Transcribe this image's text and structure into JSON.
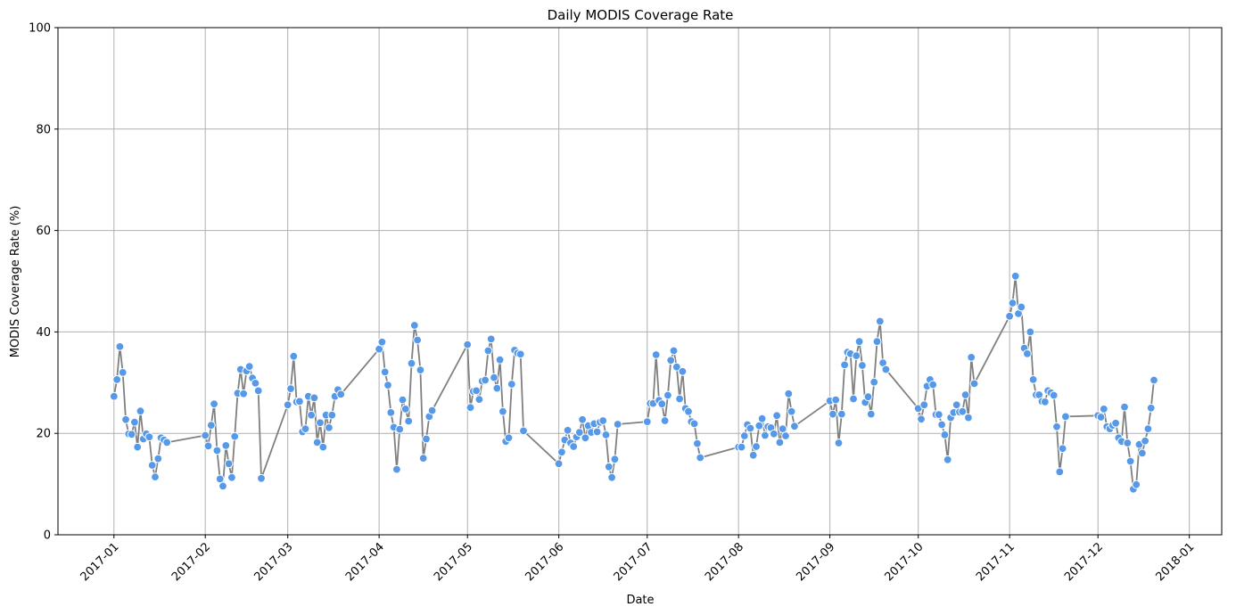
{
  "chart_data": {
    "type": "line",
    "title": "Daily MODIS Coverage Rate",
    "xlabel": "Date",
    "ylabel": "MODIS Coverage Rate (%)",
    "ylim": [
      0,
      100
    ],
    "yticks": [
      0,
      20,
      40,
      60,
      80,
      100
    ],
    "xticks": [
      "2017-01",
      "2017-02",
      "2017-03",
      "2017-04",
      "2017-05",
      "2017-06",
      "2017-07",
      "2017-08",
      "2017-09",
      "2017-10",
      "2017-11",
      "2017-12",
      "2018-01"
    ],
    "grid": true,
    "line_color": "#808080",
    "marker_color": "#5599e8",
    "series": [
      {
        "x": [
          "2017-01-01",
          "2017-01-02",
          "2017-01-03",
          "2017-01-04",
          "2017-01-05",
          "2017-01-06",
          "2017-01-07",
          "2017-01-08",
          "2017-01-09",
          "2017-01-10",
          "2017-01-11",
          "2017-01-12",
          "2017-01-13",
          "2017-01-14",
          "2017-01-15",
          "2017-01-16",
          "2017-01-17",
          "2017-01-18",
          "2017-01-19",
          "2017-02-01",
          "2017-02-02",
          "2017-02-03",
          "2017-02-04",
          "2017-02-05",
          "2017-02-06",
          "2017-02-07",
          "2017-02-08",
          "2017-02-09",
          "2017-02-10",
          "2017-02-11",
          "2017-02-12",
          "2017-02-13",
          "2017-02-14",
          "2017-02-15",
          "2017-02-16",
          "2017-02-17",
          "2017-02-18",
          "2017-02-19",
          "2017-02-20",
          "2017-03-01",
          "2017-03-02",
          "2017-03-03",
          "2017-03-04",
          "2017-03-05",
          "2017-03-06",
          "2017-03-07",
          "2017-03-08",
          "2017-03-09",
          "2017-03-10",
          "2017-03-11",
          "2017-03-12",
          "2017-03-13",
          "2017-03-14",
          "2017-03-15",
          "2017-03-16",
          "2017-03-17",
          "2017-03-18",
          "2017-03-19",
          "2017-04-01",
          "2017-04-02",
          "2017-04-03",
          "2017-04-04",
          "2017-04-05",
          "2017-04-06",
          "2017-04-07",
          "2017-04-08",
          "2017-04-09",
          "2017-04-10",
          "2017-04-11",
          "2017-04-12",
          "2017-04-13",
          "2017-04-14",
          "2017-04-15",
          "2017-04-16",
          "2017-04-17",
          "2017-04-18",
          "2017-04-19",
          "2017-05-01",
          "2017-05-02",
          "2017-05-03",
          "2017-05-04",
          "2017-05-05",
          "2017-05-06",
          "2017-05-07",
          "2017-05-08",
          "2017-05-09",
          "2017-05-10",
          "2017-05-11",
          "2017-05-12",
          "2017-05-13",
          "2017-05-14",
          "2017-05-15",
          "2017-05-16",
          "2017-05-17",
          "2017-05-18",
          "2017-05-19",
          "2017-05-20",
          "2017-06-01",
          "2017-06-02",
          "2017-06-03",
          "2017-06-04",
          "2017-06-05",
          "2017-06-06",
          "2017-06-07",
          "2017-06-08",
          "2017-06-09",
          "2017-06-10",
          "2017-06-11",
          "2017-06-12",
          "2017-06-13",
          "2017-06-14",
          "2017-06-15",
          "2017-06-16",
          "2017-06-17",
          "2017-06-18",
          "2017-06-19",
          "2017-06-20",
          "2017-06-21",
          "2017-07-01",
          "2017-07-02",
          "2017-07-03",
          "2017-07-04",
          "2017-07-05",
          "2017-07-06",
          "2017-07-07",
          "2017-07-08",
          "2017-07-09",
          "2017-07-10",
          "2017-07-11",
          "2017-07-12",
          "2017-07-13",
          "2017-07-14",
          "2017-07-15",
          "2017-07-16",
          "2017-07-17",
          "2017-07-18",
          "2017-07-19",
          "2017-08-01",
          "2017-08-02",
          "2017-08-03",
          "2017-08-04",
          "2017-08-05",
          "2017-08-06",
          "2017-08-07",
          "2017-08-08",
          "2017-08-09",
          "2017-08-10",
          "2017-08-11",
          "2017-08-12",
          "2017-08-13",
          "2017-08-14",
          "2017-08-15",
          "2017-08-16",
          "2017-08-17",
          "2017-08-18",
          "2017-08-19",
          "2017-08-20",
          "2017-09-01",
          "2017-09-02",
          "2017-09-03",
          "2017-09-04",
          "2017-09-05",
          "2017-09-06",
          "2017-09-07",
          "2017-09-08",
          "2017-09-09",
          "2017-09-10",
          "2017-09-11",
          "2017-09-12",
          "2017-09-13",
          "2017-09-14",
          "2017-09-15",
          "2017-09-16",
          "2017-09-17",
          "2017-09-18",
          "2017-09-19",
          "2017-09-20",
          "2017-10-01",
          "2017-10-02",
          "2017-10-03",
          "2017-10-04",
          "2017-10-05",
          "2017-10-06",
          "2017-10-07",
          "2017-10-08",
          "2017-10-09",
          "2017-10-10",
          "2017-10-11",
          "2017-10-12",
          "2017-10-13",
          "2017-10-14",
          "2017-10-15",
          "2017-10-16",
          "2017-10-17",
          "2017-10-18",
          "2017-10-19",
          "2017-10-20",
          "2017-11-01",
          "2017-11-02",
          "2017-11-03",
          "2017-11-04",
          "2017-11-05",
          "2017-11-06",
          "2017-11-07",
          "2017-11-08",
          "2017-11-09",
          "2017-11-10",
          "2017-11-11",
          "2017-11-12",
          "2017-11-13",
          "2017-11-14",
          "2017-11-15",
          "2017-11-16",
          "2017-11-17",
          "2017-11-18",
          "2017-11-19",
          "2017-11-20",
          "2017-12-01",
          "2017-12-02",
          "2017-12-03",
          "2017-12-04",
          "2017-12-05",
          "2017-12-06",
          "2017-12-07",
          "2017-12-08",
          "2017-12-09",
          "2017-12-10",
          "2017-12-11",
          "2017-12-12",
          "2017-12-13",
          "2017-12-14",
          "2017-12-15",
          "2017-12-16",
          "2017-12-17",
          "2017-12-18",
          "2017-12-19",
          "2017-12-20"
        ],
        "values": [
          27.3,
          30.6,
          37.1,
          32.0,
          22.7,
          19.9,
          19.8,
          22.2,
          17.3,
          24.4,
          18.9,
          19.9,
          19.3,
          13.7,
          11.4,
          15.0,
          19.1,
          18.7,
          18.2,
          19.6,
          17.5,
          21.6,
          25.8,
          16.6,
          11.0,
          9.6,
          17.6,
          14.0,
          11.3,
          19.4,
          27.9,
          32.6,
          27.8,
          32.3,
          33.2,
          30.9,
          29.9,
          28.4,
          11.1,
          25.6,
          28.8,
          35.2,
          26.2,
          26.3,
          20.3,
          20.9,
          27.3,
          23.6,
          27.0,
          18.2,
          22.1,
          17.3,
          23.6,
          21.1,
          23.6,
          27.3,
          28.6,
          27.7,
          36.6,
          38.0,
          32.1,
          29.5,
          24.1,
          21.2,
          12.9,
          20.8,
          26.6,
          24.8,
          22.4,
          33.8,
          41.3,
          38.4,
          32.5,
          15.1,
          18.9,
          23.3,
          24.5,
          37.5,
          25.1,
          28.3,
          28.4,
          26.7,
          30.3,
          30.5,
          36.3,
          38.6,
          31.0,
          28.9,
          34.5,
          24.3,
          18.4,
          19.1,
          29.7,
          36.4,
          35.8,
          35.6,
          20.5,
          14.0,
          16.3,
          18.7,
          20.6,
          18.1,
          17.4,
          19.3,
          20.2,
          22.7,
          19.1,
          21.5,
          20.2,
          21.9,
          20.3,
          22.2,
          22.5,
          19.7,
          13.4,
          11.3,
          14.9,
          21.8,
          22.3,
          25.9,
          25.9,
          35.5,
          26.5,
          25.8,
          22.5,
          27.5,
          34.4,
          36.3,
          33.1,
          26.8,
          32.2,
          24.9,
          24.3,
          22.3,
          21.9,
          18.0,
          15.2,
          17.3,
          17.3,
          19.5,
          21.7,
          21.0,
          15.7,
          17.4,
          21.5,
          22.9,
          19.6,
          21.3,
          21.1,
          19.9,
          23.5,
          18.2,
          20.9,
          19.5,
          27.8,
          24.3,
          21.4,
          26.4,
          23.8,
          26.6,
          18.1,
          23.8,
          33.5,
          36.0,
          35.7,
          26.8,
          35.3,
          38.1,
          33.4,
          26.1,
          27.2,
          23.8,
          30.1,
          38.1,
          42.1,
          33.9,
          32.6,
          24.9,
          22.8,
          25.6,
          29.3,
          30.6,
          29.6,
          23.7,
          23.7,
          21.7,
          19.7,
          14.8,
          23.1,
          24.1,
          25.6,
          24.2,
          24.3,
          27.6,
          23.1,
          35.0,
          29.8,
          43.1,
          45.7,
          51.0,
          43.6,
          44.9,
          36.8,
          35.7,
          40.0,
          30.6,
          27.6,
          27.6,
          26.3,
          26.2,
          28.4,
          28.0,
          27.5,
          21.3,
          12.4,
          17.0,
          23.3,
          23.5,
          23.2,
          24.8,
          21.3,
          20.9,
          21.6,
          22.0,
          19.1,
          18.4,
          25.2,
          18.1,
          14.5,
          9.0,
          9.9,
          17.8,
          16.1,
          18.5,
          20.9,
          25.0,
          30.5
        ]
      }
    ]
  }
}
